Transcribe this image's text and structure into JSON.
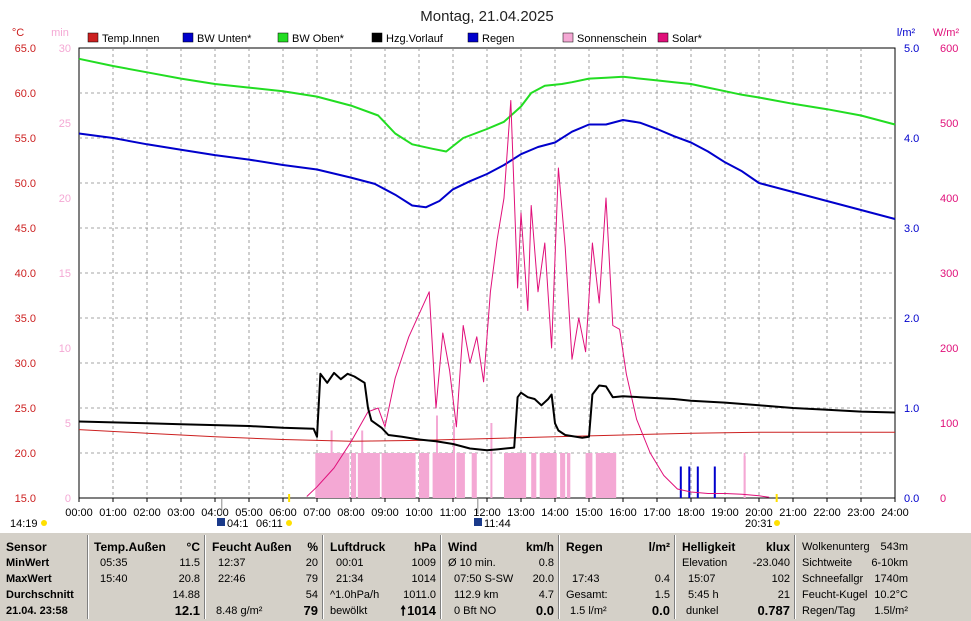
{
  "title": "Montag, 21.04.2025",
  "colors": {
    "temp_innen": "#cc2020",
    "bw_unten": "#0000cc",
    "bw_oben": "#22dd22",
    "hzg_vorlauf": "#000000",
    "regen": "#0000cc",
    "sonnenschein": "#f4a8d4",
    "solar": "#e0107a",
    "grid": "#888888"
  },
  "axes": {
    "left_unit": "°C",
    "min_unit": "min",
    "rain_unit": "l/m²",
    "solar_unit": "W/m²",
    "left_ticks": [
      "65.0",
      "60.0",
      "55.0",
      "50.0",
      "45.0",
      "40.0",
      "35.0",
      "30.0",
      "25.0",
      "20.0",
      "15.0"
    ],
    "min_ticks": [
      "30",
      "25",
      "20",
      "15",
      "10",
      "5",
      "0"
    ],
    "rain_ticks": [
      "5.0",
      "4.0",
      "3.0",
      "2.0",
      "1.0",
      "0.0"
    ],
    "solar_ticks": [
      "600",
      "500",
      "400",
      "300",
      "200",
      "100",
      "0"
    ],
    "x_ticks": [
      "00:00",
      "01:00",
      "02:00",
      "03:00",
      "04:00",
      "05:00",
      "06:00",
      "07:00",
      "08:00",
      "09:00",
      "10:00",
      "11:00",
      "12:00",
      "13:00",
      "14:00",
      "15:00",
      "16:00",
      "17:00",
      "18:00",
      "19:00",
      "20:00",
      "21:00",
      "22:00",
      "23:00",
      "24:00"
    ]
  },
  "legend": [
    {
      "label": "Temp.Innen",
      "color": "#cc2020"
    },
    {
      "label": "BW Unten*",
      "color": "#0000cc"
    },
    {
      "label": "BW Oben*",
      "color": "#22dd22"
    },
    {
      "label": "Hzg.Vorlauf",
      "color": "#000000"
    },
    {
      "label": "Regen",
      "color": "#0000cc"
    },
    {
      "label": "Sonnenschein",
      "color": "#f4a8d4"
    },
    {
      "label": "Solar*",
      "color": "#e0107a"
    }
  ],
  "markers": {
    "left_time": "14:19",
    "moonrise": "04:1",
    "sunrise": "06:11",
    "noon": "11:44",
    "sunset": "20:31"
  },
  "chart_data": {
    "type": "line",
    "xlim": [
      0,
      24
    ],
    "ylim": [
      15,
      65
    ],
    "rain_ylim": [
      0,
      5
    ],
    "solar_ylim": [
      0,
      600
    ],
    "sun_min_ylim": [
      0,
      30
    ],
    "series": [
      {
        "name": "Temp.Innen",
        "axis": "left",
        "x": [
          0,
          2,
          4,
          6,
          8,
          10,
          12,
          14,
          16,
          18,
          20,
          22,
          24
        ],
        "values": [
          22.6,
          22.2,
          21.8,
          21.5,
          21.3,
          21.4,
          21.6,
          21.8,
          22.0,
          22.2,
          22.3,
          22.3,
          22.3
        ]
      },
      {
        "name": "BW Unten*",
        "axis": "left",
        "x": [
          0,
          1,
          2,
          3,
          4,
          5,
          6,
          7,
          8,
          8.7,
          9.3,
          9.8,
          10.2,
          10.6,
          11,
          11.5,
          12,
          12.5,
          13,
          13.5,
          14,
          14.5,
          15,
          15.5,
          16,
          16.5,
          17,
          17.5,
          18,
          18.5,
          19,
          19.5,
          20,
          21,
          22,
          23,
          24
        ],
        "values": [
          55.5,
          55.0,
          54.3,
          53.7,
          53.1,
          52.6,
          52.0,
          51.5,
          50.6,
          49.9,
          48.7,
          47.5,
          47.3,
          48.0,
          49.3,
          50.2,
          51.0,
          52.0,
          53.2,
          54.0,
          54.5,
          55.7,
          56.5,
          56.5,
          57.0,
          56.7,
          56.0,
          55.2,
          54.5,
          53.5,
          52.3,
          51.3,
          50.0,
          49.0,
          48.0,
          47.0,
          46.0
        ]
      },
      {
        "name": "BW Oben*",
        "axis": "left",
        "x": [
          0,
          1,
          2,
          3,
          4,
          5,
          6,
          7,
          8,
          8.8,
          9.3,
          9.8,
          10.4,
          10.8,
          11.3,
          12,
          12.5,
          13,
          13.3,
          13.7,
          14.2,
          14.5,
          15,
          15.5,
          16,
          16.5,
          17,
          17.5,
          18,
          18.5,
          19,
          19.5,
          20,
          21,
          22,
          23,
          24
        ],
        "values": [
          63.8,
          63.0,
          62.3,
          61.6,
          61.0,
          60.6,
          60.2,
          59.6,
          58.6,
          57.5,
          55.5,
          54.3,
          53.8,
          53.5,
          55.0,
          56.0,
          56.8,
          58.5,
          60.0,
          60.8,
          61.0,
          61.2,
          61.6,
          61.7,
          61.8,
          61.6,
          61.4,
          61.2,
          61.0,
          60.6,
          60.2,
          59.8,
          59.5,
          58.8,
          58.2,
          57.5,
          56.5
        ]
      },
      {
        "name": "Hzg.Vorlauf",
        "axis": "left",
        "x": [
          0,
          1,
          2,
          3,
          4,
          5,
          6,
          6.9,
          7.0,
          7.1,
          7.3,
          7.5,
          7.7,
          7.9,
          8.1,
          8.4,
          8.5,
          8.6,
          8.9,
          9.1,
          9.5,
          10,
          10.5,
          11,
          11.5,
          12,
          12.3,
          12.8,
          12.9,
          13.0,
          13.2,
          13.4,
          13.6,
          13.8,
          13.9,
          14.0,
          14.1,
          14.3,
          14.8,
          15.0,
          15.1,
          15.3,
          15.5,
          15.7,
          16,
          16.5,
          17,
          17.5,
          18,
          19,
          20,
          21,
          22,
          23,
          24
        ],
        "values": [
          23.5,
          23.4,
          23.3,
          23.2,
          23.1,
          23.0,
          22.8,
          22.7,
          21.8,
          28.8,
          27.8,
          28.9,
          28.2,
          28.8,
          28.5,
          27.8,
          25.0,
          23.6,
          22.8,
          22.0,
          21.8,
          21.5,
          21.3,
          21.0,
          20.5,
          20.3,
          20.4,
          20.6,
          26.2,
          26.7,
          26.2,
          26.0,
          25.3,
          26.0,
          26.5,
          23.3,
          22.5,
          22.0,
          21.7,
          21.8,
          26.5,
          27.5,
          27.4,
          26.2,
          26.3,
          26.2,
          26.1,
          26.0,
          25.8,
          25.6,
          25.3,
          25.0,
          24.8,
          24.6,
          24.5
        ]
      },
      {
        "name": "Solar*",
        "axis": "solar",
        "x": [
          6.7,
          7.0,
          7.5,
          8.0,
          8.5,
          8.8,
          9.0,
          9.3,
          9.7,
          10.0,
          10.3,
          10.5,
          10.7,
          10.9,
          11.1,
          11.3,
          11.5,
          11.7,
          11.9,
          12.1,
          12.3,
          12.5,
          12.7,
          12.9,
          13.0,
          13.2,
          13.3,
          13.5,
          13.7,
          13.9,
          14.1,
          14.3,
          14.5,
          14.7,
          14.9,
          15.1,
          15.3,
          15.5,
          15.7,
          15.9,
          16.1,
          16.4,
          16.8,
          17.2,
          17.6,
          18.0,
          18.5,
          19.0,
          19.5,
          20.0,
          20.3
        ],
        "values": [
          2,
          15,
          40,
          75,
          115,
          120,
          95,
          160,
          215,
          245,
          275,
          120,
          220,
          170,
          95,
          230,
          180,
          215,
          155,
          275,
          345,
          400,
          530,
          280,
          380,
          250,
          390,
          275,
          340,
          200,
          440,
          335,
          185,
          240,
          195,
          340,
          260,
          400,
          230,
          225,
          165,
          105,
          60,
          30,
          12,
          8,
          6,
          6,
          5,
          3,
          1
        ]
      },
      {
        "name": "Regen",
        "axis": "rain",
        "type": "bar",
        "x": [
          17.7,
          17.95,
          18.2,
          18.7
        ],
        "values": [
          0.35,
          0.35,
          0.35,
          0.35
        ]
      },
      {
        "name": "Sonnenschein",
        "axis": "min",
        "type": "bar",
        "intervals": [
          [
            6.95,
            7.95
          ],
          [
            8.0,
            8.15
          ],
          [
            8.2,
            8.85
          ],
          [
            8.9,
            9.9
          ],
          [
            10.0,
            10.3
          ],
          [
            10.4,
            11.0
          ],
          [
            11.1,
            11.35
          ],
          [
            11.55,
            11.7
          ],
          [
            12.5,
            13.15
          ],
          [
            13.3,
            13.45
          ],
          [
            13.55,
            14.05
          ],
          [
            14.15,
            14.3
          ],
          [
            14.35,
            14.45
          ],
          [
            14.9,
            15.1
          ],
          [
            15.2,
            15.8
          ],
          [
            19.55,
            19.6
          ]
        ],
        "value": 3,
        "spikes": [
          [
            7.4,
            4.5
          ],
          [
            8.3,
            4.5
          ],
          [
            10.5,
            5.5
          ],
          [
            11.0,
            5.0
          ],
          [
            12.1,
            5.0
          ],
          [
            19.55,
            2.8
          ]
        ]
      }
    ]
  },
  "summary": {
    "sensor": {
      "header": "Sensor",
      "rows": [
        "MinWert",
        "MaxWert",
        "Durchschnitt",
        "21.04. 23:58"
      ]
    },
    "temp": {
      "header": "Temp.Außen",
      "unit": "°C",
      "rows": [
        [
          "05:35",
          "11.5"
        ],
        [
          "15:40",
          "20.8"
        ],
        [
          "",
          "14.88"
        ],
        [
          "",
          "12.1"
        ]
      ]
    },
    "feucht": {
      "header": "Feucht Außen",
      "unit": "%",
      "rows": [
        [
          "12:37",
          "20"
        ],
        [
          "22:46",
          "79"
        ],
        [
          "",
          "54"
        ],
        [
          "8.48 g/m²",
          "79"
        ]
      ]
    },
    "luft": {
      "header": "Luftdruck",
      "unit": "hPa",
      "rows": [
        [
          "00:01",
          "1009"
        ],
        [
          "21:34",
          "1014"
        ],
        [
          "^1.0hPa/h",
          "1011.0"
        ],
        [
          "bewölkt",
          "1014"
        ]
      ]
    },
    "wind": {
      "header": "Wind",
      "unit": "km/h",
      "rows": [
        [
          "Ø 10 min.",
          "0.8"
        ],
        [
          "07:50   S-SW",
          "20.0"
        ],
        [
          "112.9 km",
          "4.7"
        ],
        [
          "0 Bft NO",
          "0.0"
        ]
      ]
    },
    "regen": {
      "header": "Regen",
      "unit": "l/m²",
      "rows": [
        [
          "",
          ""
        ],
        [
          "17:43",
          "0.4"
        ],
        [
          "Gesamt:",
          "1.5"
        ],
        [
          "1.5 l/m²",
          "0.0"
        ]
      ]
    },
    "hell": {
      "header": "Helligkeit",
      "unit": "klux",
      "rows": [
        [
          "Elevation",
          "-23.040"
        ],
        [
          "15:07",
          "102"
        ],
        [
          "5:45 h",
          "21"
        ],
        [
          "dunkel",
          "0.787"
        ]
      ]
    },
    "extra": {
      "rows": [
        [
          "Wolkenunterg",
          "543m"
        ],
        [
          "Sichtweite",
          "6-10km"
        ],
        [
          "Schneefallgr",
          "1740m"
        ],
        [
          "Feucht-Kugel",
          "10.2°C"
        ],
        [
          "Regen/Tag",
          "1.5l/m²"
        ]
      ]
    }
  }
}
